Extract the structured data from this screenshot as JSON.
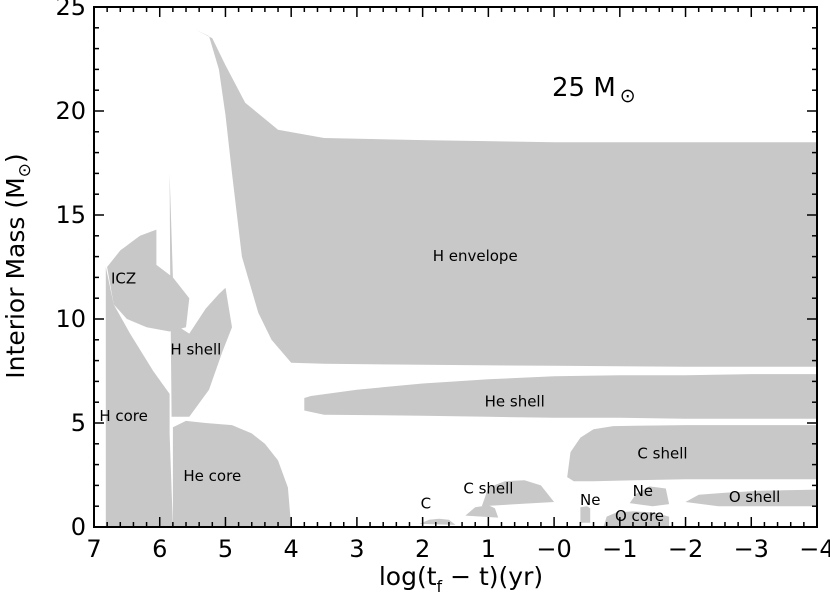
{
  "chart_data": {
    "type": "area",
    "title": "",
    "annotation": {
      "text": "25 M",
      "sub_symbol": "⊙"
    },
    "xlabel": "log(t_f − t)(yr)",
    "xlabel_parts": {
      "main": "log(t",
      "sub": "f",
      "rest": " − t)(yr)"
    },
    "ylabel": "Interior Mass (M⊙)",
    "ylabel_parts": {
      "main": "Interior Mass (M",
      "sub": "⊙",
      "rest": ")"
    },
    "xlim": [
      7,
      -4
    ],
    "ylim": [
      0,
      25
    ],
    "x_ticks": [
      7,
      6,
      5,
      4,
      3,
      2,
      1,
      0,
      -1,
      -2,
      -3,
      -4
    ],
    "x_tick_labels": [
      "7",
      "6",
      "5",
      "4",
      "3",
      "2",
      "1",
      "−0",
      "−1",
      "−2",
      "−3",
      "−4"
    ],
    "y_ticks": [
      0,
      5,
      10,
      15,
      20,
      25
    ],
    "y_tick_labels": [
      "0",
      "5",
      "10",
      "15",
      "20",
      "25"
    ],
    "grid": false,
    "region_color": "#c8c8c8",
    "regions": [
      {
        "label": "H envelope",
        "label_at": [
          1.2,
          12.8
        ],
        "polygon": [
          [
            5.45,
            23.9
          ],
          [
            5.25,
            23.6
          ],
          [
            5.1,
            22.0
          ],
          [
            5.0,
            19.8
          ],
          [
            4.9,
            17.0
          ],
          [
            4.75,
            13.0
          ],
          [
            4.5,
            10.3
          ],
          [
            4.3,
            9.0
          ],
          [
            4.0,
            7.9
          ],
          [
            3.5,
            7.85
          ],
          [
            2.0,
            7.8
          ],
          [
            0,
            7.75
          ],
          [
            -2,
            7.7
          ],
          [
            -4,
            7.7
          ],
          [
            -4,
            18.5
          ],
          [
            -2,
            18.5
          ],
          [
            0,
            18.5
          ],
          [
            2,
            18.6
          ],
          [
            3.5,
            18.7
          ],
          [
            4.2,
            19.1
          ],
          [
            4.7,
            20.4
          ],
          [
            5.0,
            22.2
          ],
          [
            5.2,
            23.5
          ]
        ]
      },
      {
        "label": "ICZ",
        "label_at": [
          6.55,
          11.7
        ],
        "polygon": [
          [
            6.8,
            12.5
          ],
          [
            6.6,
            13.3
          ],
          [
            6.3,
            14.0
          ],
          [
            6.05,
            14.3
          ],
          [
            6.05,
            12.6
          ],
          [
            5.8,
            12.0
          ],
          [
            5.55,
            11.0
          ],
          [
            5.6,
            9.6
          ],
          [
            5.85,
            9.4
          ],
          [
            6.2,
            9.6
          ],
          [
            6.5,
            10.0
          ],
          [
            6.7,
            10.7
          ]
        ]
      },
      {
        "label": "H core",
        "label_at": [
          6.55,
          5.1
        ],
        "polygon": [
          [
            6.82,
            12.5
          ],
          [
            6.7,
            10.7
          ],
          [
            6.45,
            9.3
          ],
          [
            6.1,
            7.5
          ],
          [
            5.85,
            6.4
          ],
          [
            5.85,
            4.5
          ],
          [
            5.8,
            0
          ],
          [
            6.82,
            0
          ]
        ]
      },
      {
        "label": "H shell",
        "label_at": [
          5.45,
          8.3
        ],
        "polygon": [
          [
            5.85,
            17.0
          ],
          [
            5.8,
            12.0
          ],
          [
            5.75,
            9.7
          ],
          [
            5.55,
            9.3
          ],
          [
            5.3,
            10.5
          ],
          [
            5.1,
            11.2
          ],
          [
            5.0,
            11.5
          ],
          [
            4.9,
            9.6
          ],
          [
            5.05,
            8.4
          ],
          [
            5.25,
            6.6
          ],
          [
            5.55,
            5.3
          ],
          [
            5.82,
            5.3
          ],
          [
            5.84,
            12.2
          ]
        ]
      },
      {
        "label": "He core",
        "label_at": [
          5.2,
          2.2
        ],
        "polygon": [
          [
            5.8,
            4.8
          ],
          [
            5.6,
            5.1
          ],
          [
            5.3,
            5.0
          ],
          [
            4.9,
            4.9
          ],
          [
            4.6,
            4.5
          ],
          [
            4.4,
            4.0
          ],
          [
            4.2,
            3.2
          ],
          [
            4.05,
            1.9
          ],
          [
            4.0,
            0
          ],
          [
            5.8,
            0
          ]
        ]
      },
      {
        "label": "He shell",
        "label_at": [
          0.6,
          5.8
        ],
        "polygon": [
          [
            3.8,
            6.2
          ],
          [
            3.8,
            5.6
          ],
          [
            3.5,
            5.4
          ],
          [
            2,
            5.35
          ],
          [
            1,
            5.3
          ],
          [
            0,
            5.25
          ],
          [
            -1,
            5.25
          ],
          [
            -2,
            5.2
          ],
          [
            -3,
            5.2
          ],
          [
            -4,
            5.2
          ],
          [
            -4,
            7.35
          ],
          [
            -3,
            7.35
          ],
          [
            -2,
            7.3
          ],
          [
            -1,
            7.3
          ],
          [
            0,
            7.25
          ],
          [
            1,
            7.1
          ],
          [
            2,
            6.9
          ],
          [
            3,
            6.6
          ],
          [
            3.7,
            6.3
          ]
        ]
      },
      {
        "label": "C shell",
        "label_at": [
          -1.65,
          3.3
        ],
        "polygon": [
          [
            -0.2,
            2.4
          ],
          [
            -0.25,
            3.6
          ],
          [
            -0.4,
            4.3
          ],
          [
            -0.6,
            4.7
          ],
          [
            -0.9,
            4.85
          ],
          [
            -2,
            4.9
          ],
          [
            -4,
            4.9
          ],
          [
            -4,
            2.3
          ],
          [
            -2,
            2.3
          ],
          [
            -0.6,
            2.2
          ],
          [
            -0.3,
            2.2
          ]
        ]
      },
      {
        "label": "C shell",
        "label_at": [
          1.0,
          1.6
        ],
        "polygon": [
          [
            1.1,
            1.0
          ],
          [
            1.0,
            1.9
          ],
          [
            0.75,
            2.2
          ],
          [
            0.45,
            2.25
          ],
          [
            0.2,
            2.0
          ],
          [
            0.0,
            1.2
          ]
        ]
      },
      {
        "label": "C",
        "label_at": [
          1.95,
          0.9
        ],
        "polygon": [
          [
            2.05,
            0.15
          ],
          [
            1.9,
            0.35
          ],
          [
            1.75,
            0.4
          ],
          [
            1.6,
            0.35
          ],
          [
            1.5,
            0.1
          ]
        ]
      },
      {
        "label": "",
        "label_at": null,
        "polygon": [
          [
            1.35,
            0.55
          ],
          [
            1.2,
            0.95
          ],
          [
            1.0,
            1.05
          ],
          [
            0.9,
            0.9
          ],
          [
            0.85,
            0.45
          ]
        ]
      },
      {
        "label": "Ne",
        "label_at": [
          -0.55,
          1.05
        ],
        "polygon": [
          [
            -0.55,
            0.2
          ],
          [
            -0.55,
            0.9
          ],
          [
            -0.5,
            1.0
          ],
          [
            -0.4,
            0.95
          ],
          [
            -0.4,
            0.2
          ]
        ]
      },
      {
        "label": "Ne",
        "label_at": [
          -1.35,
          1.5
        ],
        "polygon": [
          [
            -1.15,
            1.15
          ],
          [
            -1.25,
            1.6
          ],
          [
            -1.45,
            1.95
          ],
          [
            -1.7,
            1.85
          ],
          [
            -1.75,
            1.1
          ],
          [
            -1.5,
            1.0
          ]
        ]
      },
      {
        "label": "O core",
        "label_at": [
          -1.3,
          0.3
        ],
        "polygon": [
          [
            -0.75,
            0
          ],
          [
            -0.8,
            0.5
          ],
          [
            -0.95,
            0.7
          ],
          [
            -1.2,
            0.75
          ],
          [
            -1.5,
            0.7
          ],
          [
            -1.75,
            0.5
          ],
          [
            -1.75,
            0
          ],
          [
            -0.78,
            0
          ]
        ]
      },
      {
        "label": "O shell",
        "label_at": [
          -3.05,
          1.2
        ],
        "polygon": [
          [
            -2.0,
            1.2
          ],
          [
            -2.2,
            1.55
          ],
          [
            -2.6,
            1.65
          ],
          [
            -3.2,
            1.75
          ],
          [
            -4,
            1.8
          ],
          [
            -4,
            1.0
          ],
          [
            -3.2,
            1.0
          ],
          [
            -2.5,
            1.0
          ]
        ]
      }
    ]
  }
}
